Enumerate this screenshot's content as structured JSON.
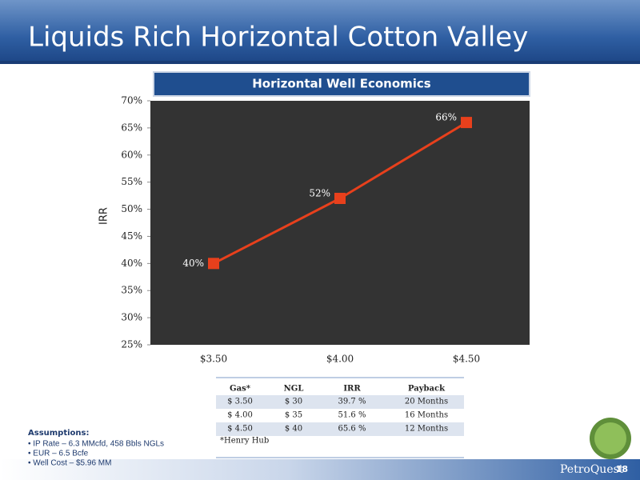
{
  "slide": {
    "title": "Liquids Rich Horizontal Cotton Valley",
    "page_number": "18",
    "logo": "PetroQuest"
  },
  "chart_data": {
    "type": "line",
    "title": "Horizontal Well Economics",
    "y_label": "IRR",
    "categories": [
      "$3.50",
      "$4.00",
      "$4.50"
    ],
    "values": [
      40,
      52,
      66
    ],
    "value_labels": [
      "40%",
      "52%",
      "66%"
    ],
    "color": "#e8401c",
    "ylim": [
      25,
      70
    ],
    "yticks": [
      {
        "value": 25,
        "label": "25%"
      },
      {
        "value": 30,
        "label": "30%"
      },
      {
        "value": 35,
        "label": "35%"
      },
      {
        "value": 40,
        "label": "40%"
      },
      {
        "value": 45,
        "label": "45%"
      },
      {
        "value": 50,
        "label": "50%"
      },
      {
        "value": 55,
        "label": "55%"
      },
      {
        "value": 60,
        "label": "60%"
      },
      {
        "value": 65,
        "label": "65%"
      },
      {
        "value": 70,
        "label": "70%"
      }
    ],
    "grid": false
  },
  "table": {
    "header": [
      "Gas*",
      "NGL",
      "IRR",
      "Payback"
    ],
    "rows": [
      [
        "$ 3.50",
        "$ 30",
        "39.7 %",
        "20 Months"
      ],
      [
        "$ 4.00",
        "$ 35",
        "51.6 %",
        "16 Months"
      ],
      [
        "$ 4.50",
        "$ 40",
        "65.6 %",
        "12 Months"
      ]
    ],
    "footnote": "*Henry Hub"
  },
  "assumptions": {
    "title": "Assumptions:",
    "items": [
      "• IP Rate – 6.3 MMcfd, 458 Bbls NGLs",
      "• EUR – 6.5 Bcfe",
      "• Well Cost – $5.96 MM"
    ]
  }
}
